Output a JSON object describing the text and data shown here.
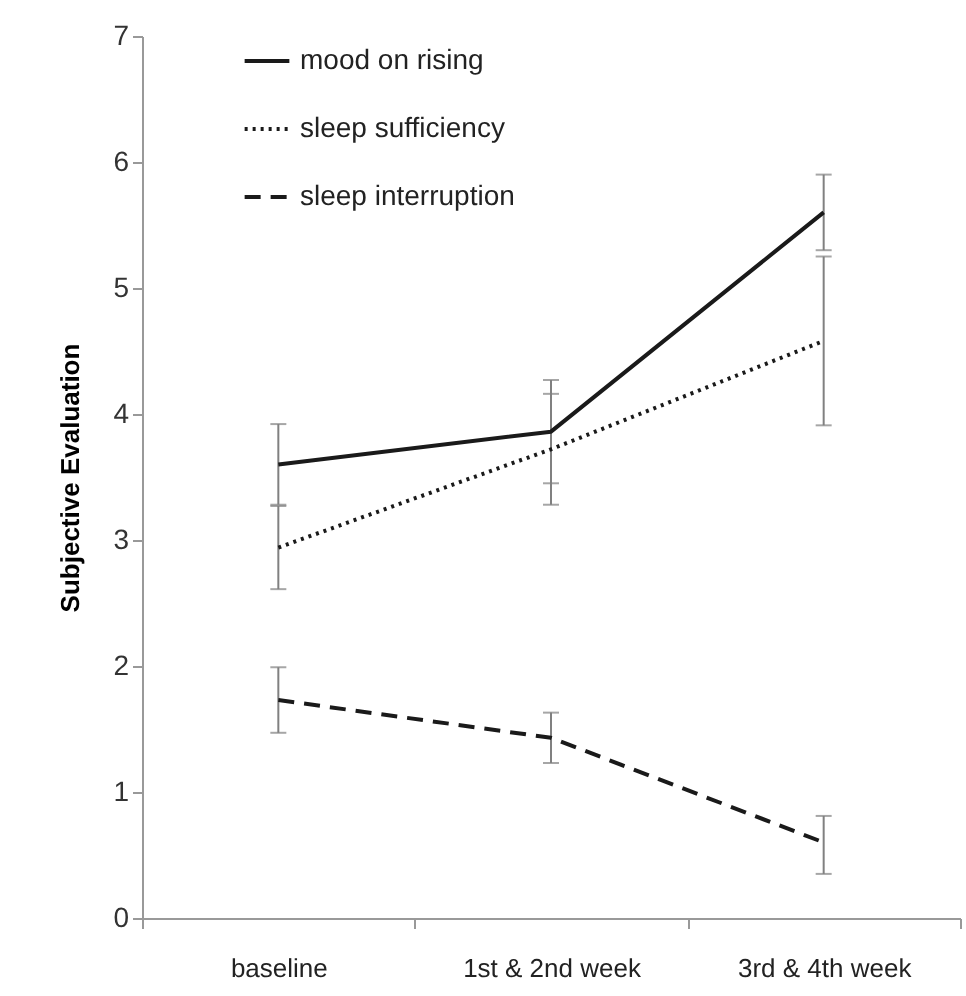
{
  "chart_data": {
    "type": "line",
    "ylabel": "Subjective Evaluation",
    "categories": [
      "baseline",
      "1st & 2nd week",
      "3rd & 4th week"
    ],
    "series": [
      {
        "name": "mood on rising",
        "color": "#1a1a1a",
        "line_style": "solid",
        "values": [
          3.6,
          3.86,
          5.6
        ],
        "errors": [
          0.32,
          0.41,
          0.3
        ]
      },
      {
        "name": "sleep sufficiency",
        "color": "#1a1a1a",
        "line_style": "dotted",
        "values": [
          2.94,
          3.72,
          4.58
        ],
        "errors": [
          0.33,
          0.44,
          0.67
        ]
      },
      {
        "name": "sleep interruption",
        "color": "#1a1a1a",
        "line_style": "dashed",
        "values": [
          1.73,
          1.43,
          0.6
        ],
        "errors": [
          0.26,
          0.2,
          [
            0.35,
            0.81
          ]
        ]
      }
    ],
    "ylim": [
      0,
      7
    ],
    "yticks": [
      0,
      1,
      2,
      3,
      4,
      5,
      6,
      7
    ],
    "legend": "top left",
    "grid": false
  }
}
